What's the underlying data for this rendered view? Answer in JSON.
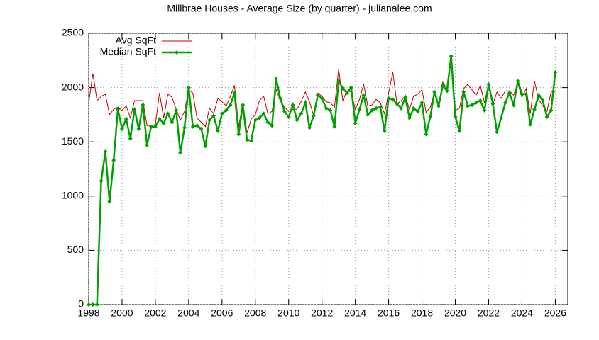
{
  "chart_data": {
    "type": "line",
    "title": "Millbrae Houses - Average Size (by quarter) - julianalee.com",
    "x": [
      1998,
      1998.25,
      1998.5,
      1998.75,
      1999,
      1999.25,
      1999.5,
      1999.75,
      2000,
      2000.25,
      2000.5,
      2000.75,
      2001,
      2001.25,
      2001.5,
      2001.75,
      2002,
      2002.25,
      2002.5,
      2002.75,
      2003,
      2003.25,
      2003.5,
      2003.75,
      2004,
      2004.25,
      2004.5,
      2004.75,
      2005,
      2005.25,
      2005.5,
      2005.75,
      2006,
      2006.25,
      2006.5,
      2006.75,
      2007,
      2007.25,
      2007.5,
      2007.75,
      2008,
      2008.25,
      2008.5,
      2008.75,
      2009,
      2009.25,
      2009.5,
      2009.75,
      2010,
      2010.25,
      2010.5,
      2010.75,
      2011,
      2011.25,
      2011.5,
      2011.75,
      2012,
      2012.25,
      2012.5,
      2012.75,
      2013,
      2013.25,
      2013.5,
      2013.75,
      2014,
      2014.25,
      2014.5,
      2014.75,
      2015,
      2015.25,
      2015.5,
      2015.75,
      2016,
      2016.25,
      2016.5,
      2016.75,
      2017,
      2017.25,
      2017.5,
      2017.75,
      2018,
      2018.25,
      2018.5,
      2018.75,
      2019,
      2019.25,
      2019.5,
      2019.75,
      2020,
      2020.25,
      2020.5,
      2020.75,
      2021,
      2021.25,
      2021.5,
      2021.75,
      2022,
      2022.25,
      2022.5,
      2022.75,
      2023,
      2023.25,
      2023.5,
      2023.75,
      2024,
      2024.25,
      2024.5,
      2024.75,
      2025,
      2025.25,
      2025.5,
      2025.75,
      2026
    ],
    "series": [
      {
        "name": "Avg SqFt",
        "color": "#c00000",
        "markers": false,
        "values": [
          1860,
          2130,
          1880,
          1920,
          1940,
          1750,
          1800,
          1820,
          1790,
          1830,
          1720,
          1880,
          1880,
          1880,
          1650,
          1650,
          1660,
          1950,
          1720,
          1940,
          1910,
          1800,
          1700,
          1780,
          1980,
          1950,
          1720,
          1680,
          1640,
          1810,
          1760,
          1900,
          1870,
          1830,
          1920,
          2020,
          1640,
          1860,
          1580,
          1710,
          1750,
          1880,
          1920,
          1760,
          1780,
          1980,
          1880,
          1820,
          1780,
          1800,
          1800,
          1870,
          1960,
          1870,
          1740,
          1950,
          1920,
          1870,
          1860,
          1820,
          2170,
          1880,
          1970,
          1960,
          1800,
          1890,
          2030,
          1830,
          1840,
          1890,
          1860,
          1760,
          1950,
          2140,
          1850,
          1880,
          1920,
          1800,
          1920,
          1940,
          1980,
          1770,
          1820,
          1950,
          1830,
          2050,
          1990,
          2250,
          1790,
          1810,
          1990,
          2030,
          1980,
          1930,
          2020,
          1860,
          2040,
          1840,
          1960,
          1900,
          1970,
          1970,
          1930,
          2040,
          1910,
          1990,
          1760,
          2060,
          1890,
          1830,
          1780,
          1960,
          1960
        ]
      },
      {
        "name": "Median SqFt",
        "color": "#00a000",
        "markers": true,
        "values": [
          0,
          0,
          0,
          1140,
          1410,
          950,
          1330,
          1800,
          1620,
          1710,
          1530,
          1800,
          1620,
          1840,
          1470,
          1640,
          1640,
          1710,
          1670,
          1760,
          1680,
          1790,
          1400,
          1630,
          2000,
          1640,
          1650,
          1620,
          1460,
          1700,
          1740,
          1600,
          1760,
          1790,
          1840,
          1950,
          1570,
          1840,
          1520,
          1510,
          1700,
          1720,
          1760,
          1680,
          1650,
          2080,
          1900,
          1780,
          1730,
          1840,
          1700,
          1760,
          1860,
          1630,
          1740,
          1930,
          1900,
          1810,
          1790,
          1640,
          2060,
          1990,
          1950,
          2000,
          1670,
          1800,
          1930,
          1750,
          1790,
          1810,
          1820,
          1600,
          1900,
          1890,
          1850,
          1810,
          1910,
          1720,
          1810,
          1780,
          1860,
          1570,
          1730,
          1960,
          1830,
          2020,
          1970,
          2290,
          1730,
          1600,
          1960,
          1830,
          1840,
          1860,
          1880,
          1790,
          2030,
          1850,
          1590,
          1720,
          1860,
          1950,
          1840,
          2060,
          1940,
          1940,
          1660,
          1800,
          1930,
          1880,
          1730,
          1790,
          2140
        ]
      }
    ],
    "xlim": [
      1998,
      2026.75
    ],
    "xticks": [
      1998,
      2000,
      2002,
      2004,
      2006,
      2008,
      2010,
      2012,
      2014,
      2016,
      2018,
      2020,
      2022,
      2024,
      2026
    ],
    "ylim": [
      0,
      2500
    ],
    "yticks": [
      0,
      500,
      1000,
      1500,
      2000,
      2500
    ],
    "grid": true,
    "legend": "top-left"
  }
}
